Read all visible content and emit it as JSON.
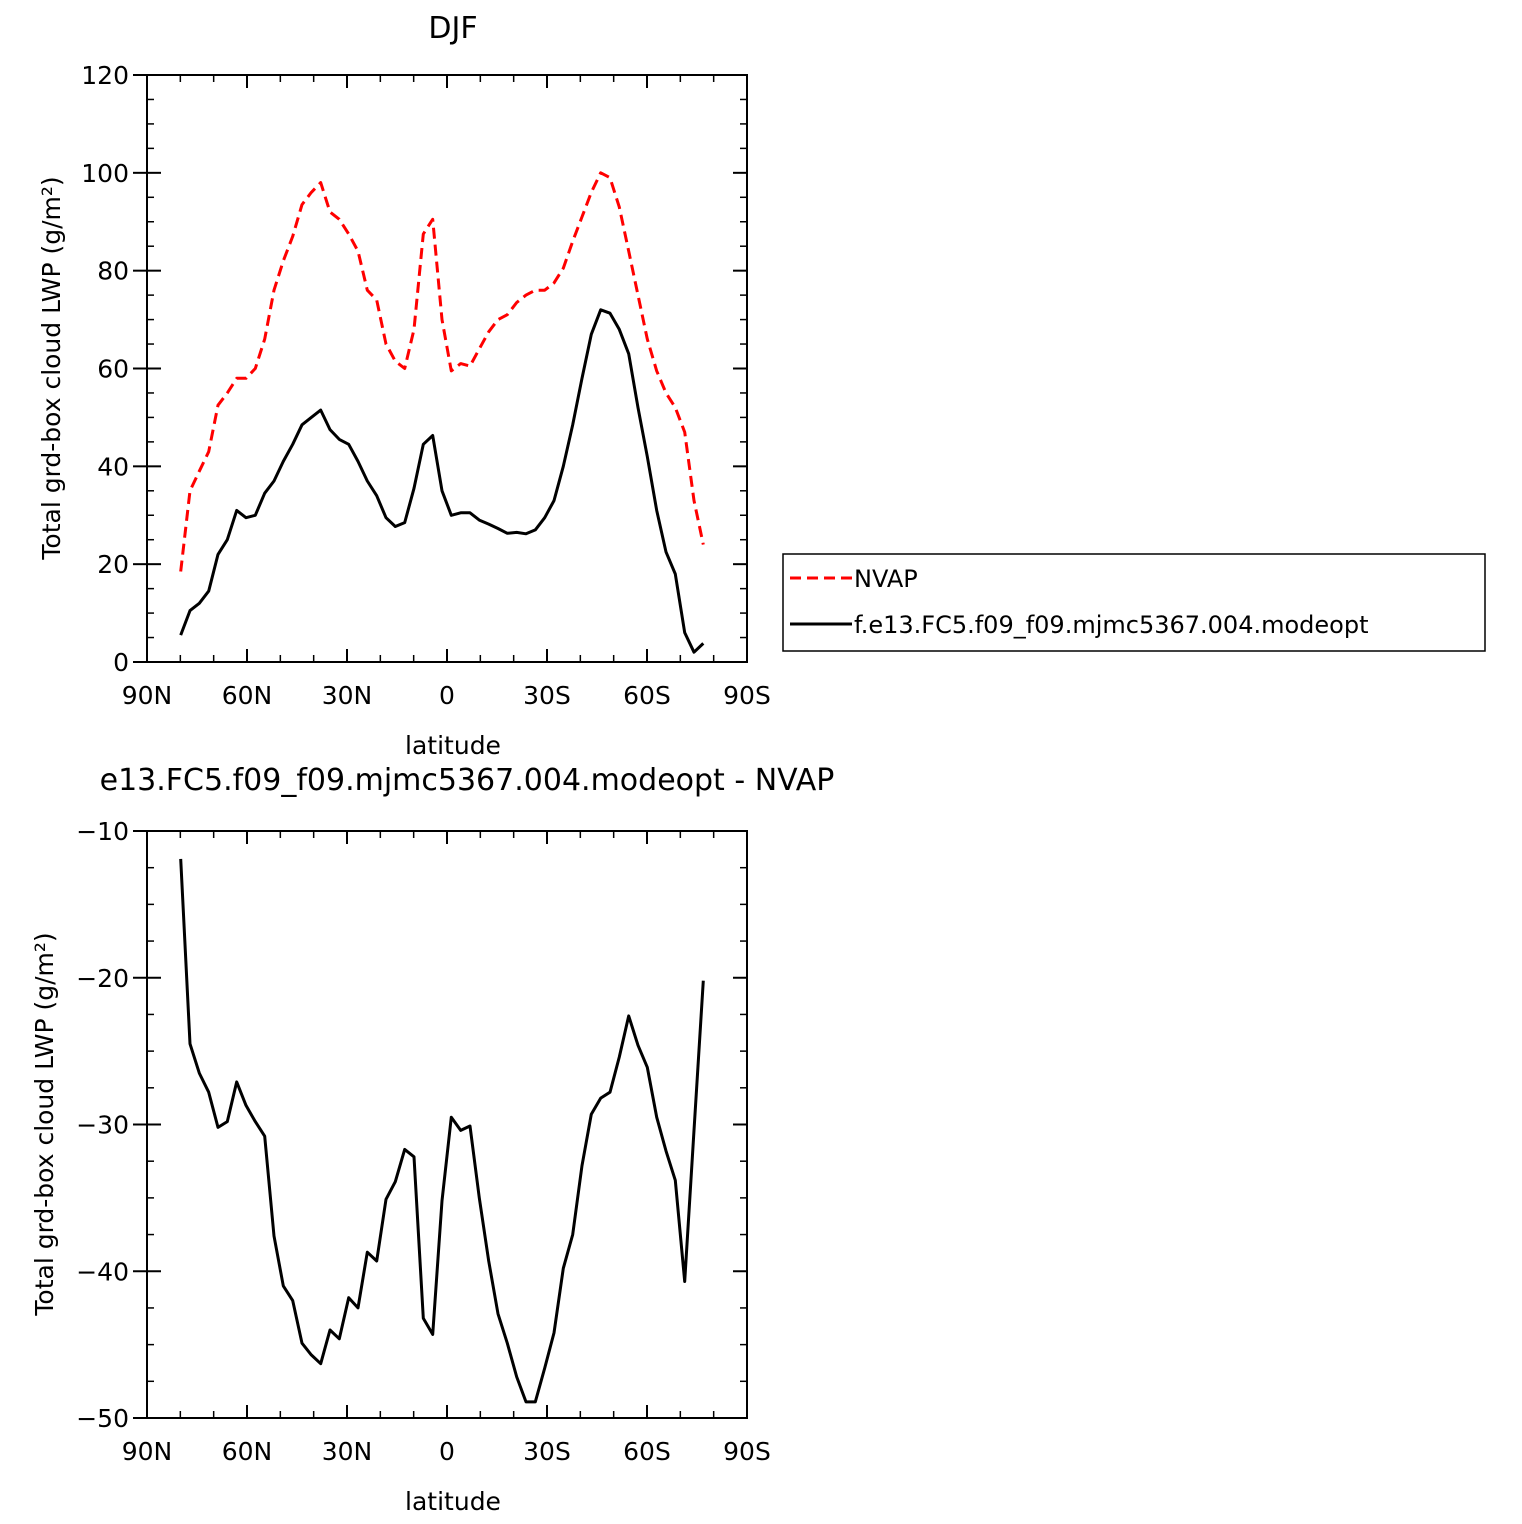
{
  "chart_data": [
    {
      "type": "line",
      "title": "DJF",
      "xlabel": "latitude",
      "ylabel": "Total grd-box cloud LWP (g/m²)",
      "xlim": [
        -90,
        90
      ],
      "ylim": [
        0,
        120
      ],
      "x_ticks": [
        -90,
        -60,
        -30,
        0,
        30,
        60,
        90
      ],
      "x_tick_labels": [
        "90N",
        "60N",
        "30N",
        "0",
        "30S",
        "60S",
        "90S"
      ],
      "y_ticks": [
        0,
        20,
        40,
        60,
        80,
        100,
        120
      ],
      "y_tick_labels": [
        "0",
        "20",
        "40",
        "60",
        "80",
        "100",
        "120"
      ],
      "legend": "outside-right",
      "grid": false,
      "x": [
        -79.9,
        -77.1,
        -74.3,
        -71.5,
        -68.7,
        -65.9,
        -63.1,
        -60.3,
        -57.5,
        -54.7,
        -51.9,
        -49.1,
        -46.3,
        -43.5,
        -40.7,
        -37.9,
        -35.1,
        -32.3,
        -29.5,
        -26.7,
        -23.9,
        -21.1,
        -18.3,
        -15.5,
        -12.7,
        -9.9,
        -7.1,
        -4.3,
        -1.5,
        1.3,
        4.1,
        6.9,
        9.7,
        12.5,
        15.3,
        18.1,
        20.9,
        23.7,
        26.5,
        29.3,
        32.1,
        34.9,
        37.7,
        40.5,
        43.3,
        46.1,
        48.9,
        51.7,
        54.5,
        57.3,
        60.1,
        62.9,
        65.7,
        68.5,
        71.3,
        74.1,
        76.9
      ],
      "series": [
        {
          "name": "NVAP",
          "color": "#ff0000",
          "dash": "dashed",
          "values": [
            18.5,
            35.0,
            39.0,
            43.0,
            52.5,
            55.0,
            58.0,
            58.0,
            60.0,
            66.0,
            76.0,
            82.0,
            87.0,
            93.5,
            96.0,
            98.0,
            92.0,
            90.5,
            87.5,
            84.0,
            76.0,
            74.0,
            65.0,
            61.5,
            60.0,
            68.0,
            87.5,
            90.5,
            70.0,
            59.5,
            61.0,
            60.5,
            64.0,
            67.5,
            70.0,
            71.0,
            73.5,
            75.0,
            76.0,
            76.0,
            77.5,
            80.5,
            86.0,
            91.0,
            96.0,
            100.0,
            99.0,
            93.0,
            84.0,
            75.0,
            66.0,
            59.5,
            55.0,
            52.0,
            47.0,
            33.0,
            24.0
          ]
        },
        {
          "name": "f.e13.FC5.f09_f09.mjmc5367.004.modeopt",
          "color": "#000000",
          "dash": "solid",
          "values": [
            5.5,
            10.5,
            12.0,
            14.5,
            22.0,
            25.0,
            31.0,
            29.5,
            30.0,
            34.5,
            37.0,
            41.0,
            44.5,
            48.5,
            50.0,
            51.5,
            47.5,
            45.5,
            44.5,
            41.0,
            37.0,
            34.0,
            29.5,
            27.7,
            28.5,
            35.5,
            44.5,
            46.3,
            35.0,
            30.0,
            30.5,
            30.5,
            29.0,
            28.2,
            27.3,
            26.3,
            26.5,
            26.2,
            27.0,
            29.5,
            33.0,
            40.0,
            48.5,
            58.0,
            67.0,
            72.0,
            71.3,
            68.0,
            63.0,
            52.0,
            42.0,
            31.0,
            22.5,
            18.0,
            6.0,
            2.0,
            3.8
          ]
        }
      ]
    },
    {
      "type": "line",
      "title": "e13.FC5.f09_f09.mjmc5367.004.modeopt - NVAP",
      "xlabel": "latitude",
      "ylabel": "Total grd-box cloud LWP (g/m²)",
      "xlim": [
        -90,
        90
      ],
      "ylim": [
        -50,
        -10
      ],
      "x_ticks": [
        -90,
        -60,
        -30,
        0,
        30,
        60,
        90
      ],
      "x_tick_labels": [
        "90N",
        "60N",
        "30N",
        "0",
        "30S",
        "60S",
        "90S"
      ],
      "y_ticks": [
        -50,
        -40,
        -30,
        -20,
        -10
      ],
      "y_tick_labels": [
        "−50",
        "−40",
        "−30",
        "−20",
        "−10"
      ],
      "grid": false,
      "x": [
        -79.9,
        -77.1,
        -74.3,
        -71.5,
        -68.7,
        -65.9,
        -63.1,
        -60.3,
        -57.5,
        -54.7,
        -51.9,
        -49.1,
        -46.3,
        -43.5,
        -40.7,
        -37.9,
        -35.1,
        -32.3,
        -29.5,
        -26.7,
        -23.9,
        -21.1,
        -18.3,
        -15.5,
        -12.7,
        -9.9,
        -7.1,
        -4.3,
        -1.5,
        1.3,
        4.1,
        6.9,
        9.7,
        12.5,
        15.3,
        18.1,
        20.9,
        23.7,
        26.5,
        29.3,
        32.1,
        34.9,
        37.7,
        40.5,
        43.3,
        46.1,
        48.9,
        51.7,
        54.5,
        57.3,
        60.1,
        62.9,
        65.7,
        68.5,
        71.3,
        74.1,
        76.9
      ],
      "series": [
        {
          "color": "#000000",
          "dash": "solid",
          "values": [
            -11.9,
            -24.5,
            -26.5,
            -27.8,
            -30.2,
            -29.8,
            -27.1,
            -28.7,
            -29.8,
            -30.8,
            -37.6,
            -41.0,
            -42.0,
            -44.9,
            -45.7,
            -46.3,
            -44.0,
            -44.6,
            -41.8,
            -42.5,
            -38.7,
            -39.3,
            -35.1,
            -33.9,
            -31.7,
            -32.2,
            -43.2,
            -44.3,
            -35.2,
            -29.5,
            -30.4,
            -30.1,
            -35.0,
            -39.3,
            -42.9,
            -44.9,
            -47.2,
            -48.9,
            -48.9,
            -46.6,
            -44.2,
            -39.8,
            -37.5,
            -32.8,
            -29.3,
            -28.2,
            -27.8,
            -25.4,
            -22.6,
            -24.6,
            -26.1,
            -29.5,
            -31.8,
            -33.8,
            -40.7,
            -30.4,
            -20.2
          ]
        }
      ]
    }
  ]
}
